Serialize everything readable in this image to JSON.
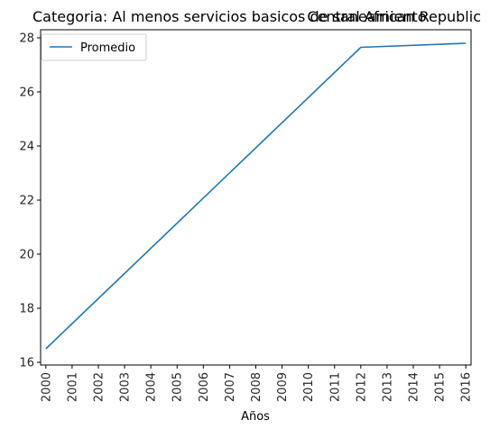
{
  "chart_data": {
    "type": "line",
    "title_left": "Categoria: Al menos servicios basicos de saneamiento",
    "title_right": "Central African Republic",
    "xlabel": "Años",
    "ylabel": "",
    "categories": [
      "2000",
      "2001",
      "2002",
      "2003",
      "2004",
      "2005",
      "2006",
      "2007",
      "2008",
      "2009",
      "2010",
      "2011",
      "2012",
      "2013",
      "2014",
      "2015",
      "2016"
    ],
    "x": [
      2000,
      2012,
      2016
    ],
    "series": [
      {
        "name": "Promedio",
        "x": [
          2000,
          2012,
          2016
        ],
        "values": [
          16.5,
          27.65,
          27.8
        ],
        "color": "#1f77b4"
      }
    ],
    "xlim": [
      1999.8,
      2016.2
    ],
    "ylim": [
      15.9,
      28.3
    ],
    "yticks": [
      16,
      18,
      20,
      22,
      24,
      26,
      28
    ],
    "grid": false,
    "legend": "top-left"
  }
}
